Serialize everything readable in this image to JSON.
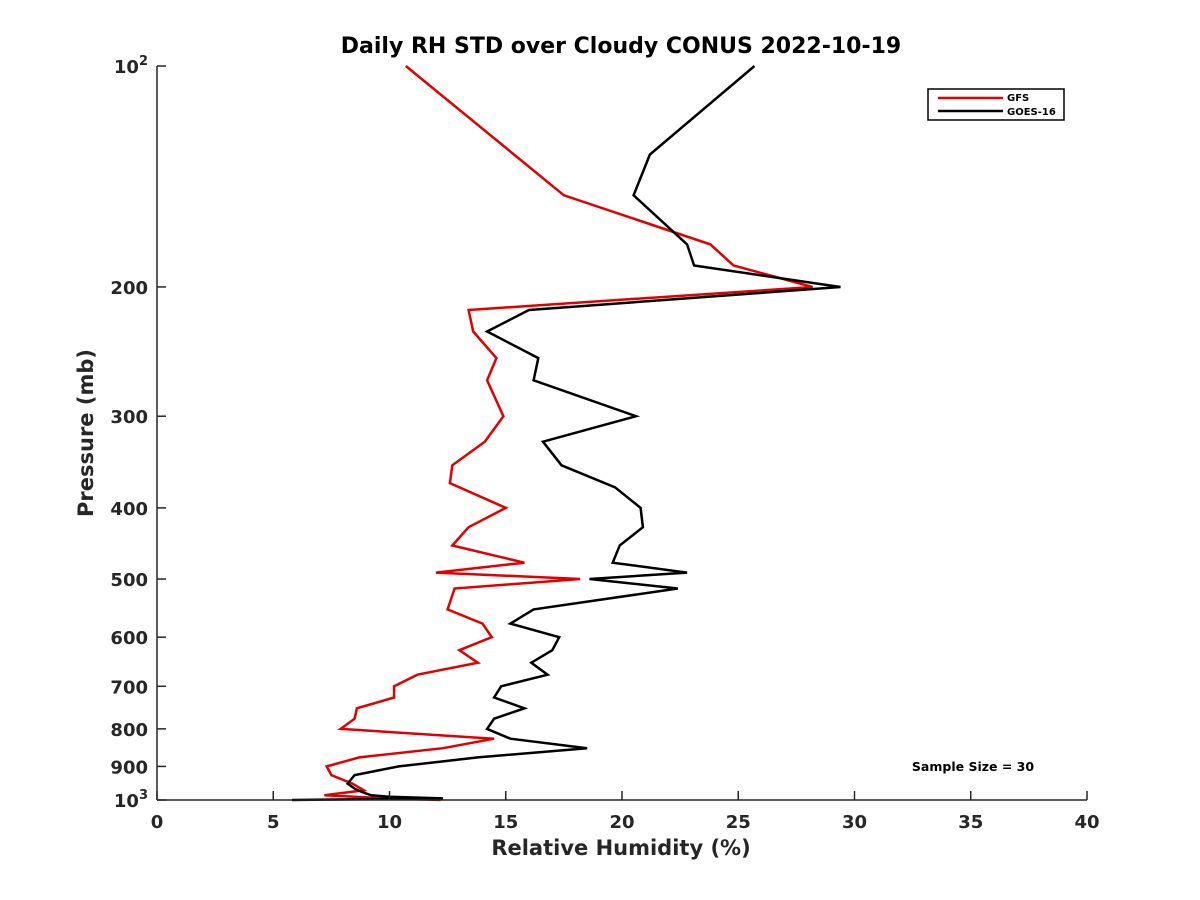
{
  "chart_data": {
    "type": "line",
    "title": "Daily RH STD over Cloudy CONUS 2022-10-19",
    "xlabel": "Relative Humidity (%)",
    "ylabel": "Pressure (mb)",
    "xlim": [
      0,
      40
    ],
    "ylim": [
      100,
      1000
    ],
    "y_scale": "log",
    "y_reversed": true,
    "grid": false,
    "legend_position": "top-right",
    "x_ticks": [
      {
        "value": 0,
        "label": "0"
      },
      {
        "value": 5,
        "label": "5"
      },
      {
        "value": 10,
        "label": "10"
      },
      {
        "value": 15,
        "label": "15"
      },
      {
        "value": 20,
        "label": "20"
      },
      {
        "value": 25,
        "label": "25"
      },
      {
        "value": 30,
        "label": "30"
      },
      {
        "value": 35,
        "label": "35"
      },
      {
        "value": 40,
        "label": "40"
      }
    ],
    "y_ticks": [
      {
        "value": 100,
        "base": "10",
        "exp": "2"
      },
      {
        "value": 200,
        "label": "200"
      },
      {
        "value": 300,
        "label": "300"
      },
      {
        "value": 400,
        "label": "400"
      },
      {
        "value": 500,
        "label": "500"
      },
      {
        "value": 600,
        "label": "600"
      },
      {
        "value": 700,
        "label": "700"
      },
      {
        "value": 800,
        "label": "800"
      },
      {
        "value": 900,
        "label": "900"
      },
      {
        "value": 1000,
        "base": "10",
        "exp": "3"
      }
    ],
    "series": [
      {
        "name": "GFS",
        "color": "#e00000",
        "points": [
          [
            10.7,
            100
          ],
          [
            17.5,
            150
          ],
          [
            23.8,
            175
          ],
          [
            24.8,
            187
          ],
          [
            28.2,
            200
          ],
          [
            13.4,
            215
          ],
          [
            13.6,
            230
          ],
          [
            14.6,
            250
          ],
          [
            14.2,
            268
          ],
          [
            14.9,
            300
          ],
          [
            14.1,
            325
          ],
          [
            12.7,
            350
          ],
          [
            12.6,
            370
          ],
          [
            15.0,
            400
          ],
          [
            13.4,
            425
          ],
          [
            12.7,
            450
          ],
          [
            15.8,
            475
          ],
          [
            12.0,
            490
          ],
          [
            18.2,
            500
          ],
          [
            12.8,
            515
          ],
          [
            12.5,
            550
          ],
          [
            14.0,
            575
          ],
          [
            14.4,
            600
          ],
          [
            13.0,
            625
          ],
          [
            13.8,
            650
          ],
          [
            11.2,
            675
          ],
          [
            10.2,
            700
          ],
          [
            10.2,
            725
          ],
          [
            8.6,
            750
          ],
          [
            8.5,
            775
          ],
          [
            7.9,
            800
          ],
          [
            14.5,
            825
          ],
          [
            12.3,
            850
          ],
          [
            8.7,
            875
          ],
          [
            7.3,
            900
          ],
          [
            7.5,
            925
          ],
          [
            8.4,
            950
          ],
          [
            8.9,
            970
          ],
          [
            7.2,
            985
          ],
          [
            9.9,
            995
          ],
          [
            12.2,
            1000
          ]
        ]
      },
      {
        "name": "GOES-16",
        "color": "#000000",
        "points": [
          [
            25.7,
            100
          ],
          [
            21.2,
            132
          ],
          [
            20.5,
            150
          ],
          [
            22.8,
            175
          ],
          [
            23.1,
            187
          ],
          [
            29.4,
            200
          ],
          [
            16.0,
            215
          ],
          [
            14.2,
            230
          ],
          [
            16.4,
            250
          ],
          [
            16.2,
            268
          ],
          [
            20.6,
            300
          ],
          [
            16.6,
            325
          ],
          [
            17.4,
            350
          ],
          [
            19.7,
            375
          ],
          [
            20.8,
            400
          ],
          [
            20.9,
            425
          ],
          [
            19.9,
            450
          ],
          [
            19.6,
            475
          ],
          [
            22.8,
            490
          ],
          [
            18.6,
            500
          ],
          [
            22.4,
            515
          ],
          [
            16.2,
            550
          ],
          [
            15.2,
            575
          ],
          [
            17.3,
            600
          ],
          [
            17.0,
            625
          ],
          [
            16.1,
            650
          ],
          [
            16.8,
            675
          ],
          [
            14.8,
            700
          ],
          [
            14.5,
            725
          ],
          [
            15.8,
            750
          ],
          [
            14.5,
            775
          ],
          [
            14.2,
            800
          ],
          [
            15.2,
            825
          ],
          [
            18.5,
            850
          ],
          [
            13.8,
            875
          ],
          [
            10.4,
            900
          ],
          [
            8.5,
            925
          ],
          [
            8.2,
            950
          ],
          [
            8.5,
            965
          ],
          [
            8.8,
            975
          ],
          [
            9.2,
            985
          ],
          [
            10.0,
            990
          ],
          [
            12.3,
            995
          ],
          [
            5.8,
            1000
          ]
        ]
      }
    ],
    "annotations": [
      {
        "text": "Sample Size = 30"
      }
    ]
  }
}
